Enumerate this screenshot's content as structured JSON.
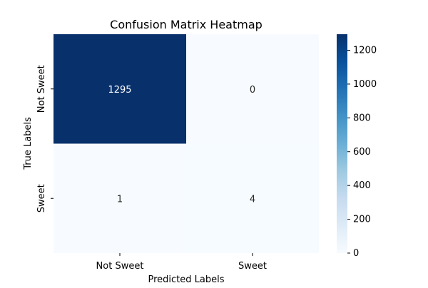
{
  "chart_data": {
    "type": "heatmap",
    "title": "Confusion Matrix Heatmap",
    "xlabel": "Predicted Labels",
    "ylabel": "True Labels",
    "x_categories": [
      "Not Sweet",
      "Sweet"
    ],
    "y_categories": [
      "Not Sweet",
      "Sweet"
    ],
    "values": [
      [
        1295,
        0
      ],
      [
        1,
        4
      ]
    ],
    "colormap": "Blues",
    "colorbar": {
      "min": 0,
      "max": 1295,
      "ticks": [
        0,
        200,
        400,
        600,
        800,
        1000,
        1200
      ]
    },
    "grid": false
  },
  "colors": {
    "low": "#f7fbff",
    "high": "#08306b",
    "text_light": "#ffffff",
    "text_dark": "#262626",
    "axis": "#000000"
  }
}
